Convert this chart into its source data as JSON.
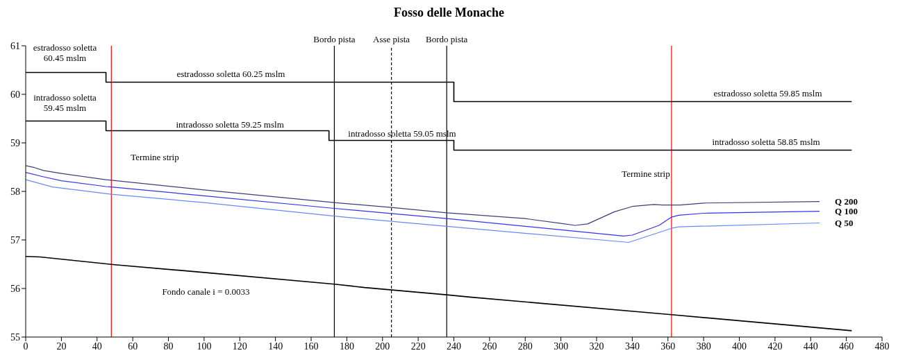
{
  "chart_data": {
    "type": "line",
    "title": "Fosso delle Monache",
    "xlim": [
      0,
      480
    ],
    "xticks": [
      0,
      20,
      40,
      60,
      80,
      100,
      120,
      140,
      160,
      180,
      200,
      220,
      240,
      260,
      280,
      300,
      320,
      340,
      360,
      380,
      400,
      420,
      440,
      460,
      480
    ],
    "ylim": [
      55,
      61
    ],
    "yticks": [
      55,
      56,
      57,
      58,
      59,
      60,
      61
    ],
    "series": [
      {
        "color": "#000000",
        "x": [
          0,
          45,
          45,
          240,
          240,
          463
        ],
        "values": [
          60.45,
          60.45,
          60.25,
          60.25,
          59.85,
          59.85
        ]
      },
      {
        "color": "#000000",
        "x": [
          0,
          45,
          45,
          170,
          170,
          240,
          240,
          463
        ],
        "values": [
          59.45,
          59.45,
          59.25,
          59.25,
          59.05,
          59.05,
          58.85,
          58.85
        ]
      },
      {
        "color": "#000000",
        "x": [
          0,
          8,
          50,
          100,
          173,
          190,
          236,
          250,
          362,
          463
        ],
        "values": [
          56.66,
          56.65,
          56.49,
          56.33,
          56.09,
          56.02,
          55.87,
          55.82,
          55.46,
          55.13
        ]
      },
      {
        "name": "Q 200",
        "color": "#3d3d7a",
        "x": [
          0,
          5,
          10,
          20,
          45,
          48,
          100,
          173,
          205,
          236,
          280,
          300,
          308,
          315,
          330,
          340,
          352,
          357,
          367,
          380,
          445
        ],
        "values": [
          58.53,
          58.49,
          58.43,
          58.37,
          58.24,
          58.23,
          58.03,
          57.77,
          57.67,
          57.56,
          57.44,
          57.34,
          57.3,
          57.33,
          57.58,
          57.69,
          57.73,
          57.72,
          57.72,
          57.76,
          57.79
        ]
      },
      {
        "name": "Q 100",
        "color": "#3333ee",
        "x": [
          0,
          10,
          20,
          45,
          48,
          100,
          173,
          236,
          300,
          335,
          340,
          355,
          362,
          366,
          380,
          445
        ],
        "values": [
          58.39,
          58.3,
          58.22,
          58.1,
          58.09,
          57.91,
          57.65,
          57.44,
          57.21,
          57.08,
          57.1,
          57.3,
          57.47,
          57.51,
          57.55,
          57.59
        ]
      },
      {
        "name": "Q 50",
        "color": "#6688ff",
        "x": [
          0,
          15,
          48,
          100,
          173,
          236,
          338,
          362,
          366,
          445
        ],
        "values": [
          58.24,
          58.09,
          57.94,
          57.77,
          57.49,
          57.28,
          56.95,
          57.24,
          57.27,
          57.35
        ]
      }
    ],
    "ref_lines": [
      {
        "axis": "x",
        "value": 48,
        "color": "#ff0000"
      },
      {
        "axis": "x",
        "value": 173,
        "label": "Bordo pista",
        "color": "#000000"
      },
      {
        "axis": "x",
        "value": 205,
        "label": "Asse pista",
        "color": "#000000",
        "line_style": "dashed"
      },
      {
        "axis": "x",
        "value": 236,
        "label": "Bordo pista",
        "color": "#000000"
      },
      {
        "axis": "x",
        "value": 362,
        "color": "#ff0000"
      }
    ],
    "annotations": [
      "estradosso soletta\n60.45 mslm",
      "estradosso soletta 60.25 mslm",
      "estradosso soletta 59.85 mslm",
      "intradosso soletta\n59.45 mslm",
      "intradosso soletta 59.25 mslm",
      "intradosso soletta 59.05 mslm",
      "intradosso soletta 58.85 mslm",
      "Fondo canale i = 0.0033",
      "Termine strip",
      "Termine strip"
    ]
  }
}
